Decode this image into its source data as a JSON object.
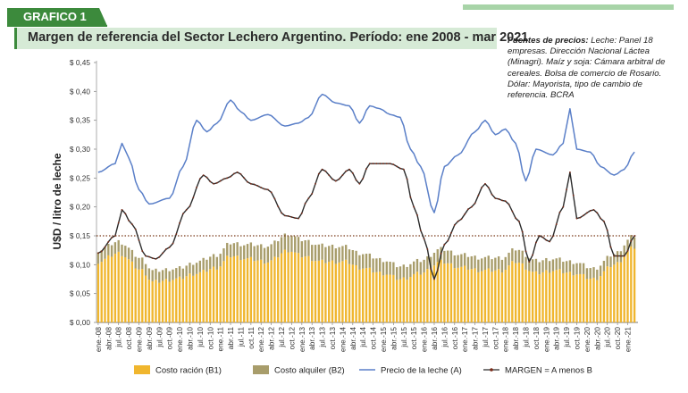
{
  "header": {
    "tag": "GRAFICO 1",
    "title": "Margen de referencia del Sector Lechero Argentino. Período: ene 2008 - mar 2021"
  },
  "sources": {
    "label": "Fuentes de precios:",
    "text": " Leche: Panel 18 empresas. Dirección Nacional Láctea (Minagri). Maíz y soja: Cámara arbitral de cereales. Bolsa de comercio de Rosario. Dólar: Mayorista, tipo de cambio de referencia. BCRA"
  },
  "colors": {
    "costo_racion": "#f0b62e",
    "costo_alquiler": "#a89d6b",
    "precio_leche": "#5a7fc8",
    "margen": "#2b2b2b",
    "reference_line": "#7a3a1a"
  },
  "chart_data": {
    "type": "bar",
    "ylabel": "U$D / litro de leche",
    "ylim": [
      0,
      0.45
    ],
    "yticks": [
      "$ 0,00",
      "$ 0,05",
      "$ 0,10",
      "$ 0,15",
      "$ 0,20",
      "$ 0,25",
      "$ 0,30",
      "$ 0,35",
      "$ 0,40",
      "$ 0,45"
    ],
    "x_start": "2008-01",
    "x_end": "2021-03",
    "xticks": [
      "ene.-08",
      "abr.-08",
      "jul.-08",
      "oct.-08",
      "ene.-09",
      "abr.-09",
      "jul.-09",
      "oct.-09",
      "ene.-10",
      "abr.-10",
      "jul.-10",
      "oct.-10",
      "ene.-11",
      "abr.-11",
      "jul.-11",
      "oct.-11",
      "ene.-12",
      "abr.-12",
      "jul.-12",
      "oct.-12",
      "ene.-13",
      "abr.-13",
      "jul.-13",
      "oct.-13",
      "ene.-14",
      "abr.-14",
      "jul.-14",
      "oct.-14",
      "ene.-15",
      "abr.-15",
      "jul.-15",
      "oct.-15",
      "ene.-16",
      "abr.-16",
      "jul.-16",
      "oct.-16",
      "ene.-17",
      "abr.-17",
      "jul.-17",
      "oct.-17",
      "ene.-18",
      "abr.-18",
      "jul.-18",
      "oct.-18",
      "ene.-19",
      "abr.-19",
      "jul.-19",
      "oct.-19",
      "ene.-20",
      "abr.-20",
      "jul.-20",
      "oct.-20",
      "ene.-21"
    ],
    "reference_line_y": 0.15,
    "legend_position": "bottom",
    "series": [
      {
        "name": "Costo ración (B1)",
        "kind": "stacked-bar",
        "knots": [
          [
            "2008-01",
            0.105
          ],
          [
            "2008-07",
            0.12
          ],
          [
            "2009-02",
            0.09
          ],
          [
            "2009-05",
            0.07
          ],
          [
            "2009-12",
            0.075
          ],
          [
            "2010-06",
            0.085
          ],
          [
            "2010-12",
            0.095
          ],
          [
            "2011-04",
            0.115
          ],
          [
            "2011-09",
            0.11
          ],
          [
            "2012-03",
            0.105
          ],
          [
            "2012-09",
            0.125
          ],
          [
            "2013-01",
            0.115
          ],
          [
            "2013-07",
            0.105
          ],
          [
            "2014-02",
            0.105
          ],
          [
            "2014-06",
            0.095
          ],
          [
            "2015-01",
            0.085
          ],
          [
            "2015-06",
            0.075
          ],
          [
            "2015-12",
            0.085
          ],
          [
            "2016-06",
            0.105
          ],
          [
            "2016-12",
            0.095
          ],
          [
            "2017-06",
            0.09
          ],
          [
            "2017-12",
            0.09
          ],
          [
            "2018-04",
            0.105
          ],
          [
            "2018-10",
            0.085
          ],
          [
            "2019-03",
            0.09
          ],
          [
            "2019-09",
            0.085
          ],
          [
            "2020-03",
            0.075
          ],
          [
            "2020-09",
            0.1
          ],
          [
            "2021-03",
            0.13
          ]
        ]
      },
      {
        "name": "Costo alquiler (B2)",
        "kind": "stacked-bar",
        "knots": [
          [
            "2008-01",
            0.02
          ],
          [
            "2009-01",
            0.02
          ],
          [
            "2010-01",
            0.018
          ],
          [
            "2011-01",
            0.022
          ],
          [
            "2012-06",
            0.028
          ],
          [
            "2013-06",
            0.028
          ],
          [
            "2014-06",
            0.025
          ],
          [
            "2015-06",
            0.022
          ],
          [
            "2016-06",
            0.022
          ],
          [
            "2017-06",
            0.022
          ],
          [
            "2018-06",
            0.022
          ],
          [
            "2019-06",
            0.02
          ],
          [
            "2020-06",
            0.018
          ],
          [
            "2021-03",
            0.02
          ]
        ]
      },
      {
        "name": "Precio de la leche (A)",
        "kind": "line",
        "knots": [
          [
            "2008-01",
            0.26
          ],
          [
            "2008-06",
            0.275
          ],
          [
            "2008-08",
            0.31
          ],
          [
            "2008-10",
            0.285
          ],
          [
            "2009-01",
            0.23
          ],
          [
            "2009-04",
            0.205
          ],
          [
            "2009-10",
            0.215
          ],
          [
            "2010-02",
            0.27
          ],
          [
            "2010-06",
            0.35
          ],
          [
            "2010-09",
            0.33
          ],
          [
            "2010-12",
            0.345
          ],
          [
            "2011-04",
            0.385
          ],
          [
            "2011-07",
            0.365
          ],
          [
            "2011-10",
            0.35
          ],
          [
            "2012-03",
            0.36
          ],
          [
            "2012-08",
            0.34
          ],
          [
            "2012-12",
            0.345
          ],
          [
            "2013-03",
            0.355
          ],
          [
            "2013-07",
            0.395
          ],
          [
            "2013-11",
            0.38
          ],
          [
            "2014-03",
            0.375
          ],
          [
            "2014-06",
            0.345
          ],
          [
            "2014-09",
            0.375
          ],
          [
            "2014-12",
            0.37
          ],
          [
            "2015-03",
            0.36
          ],
          [
            "2015-06",
            0.355
          ],
          [
            "2015-09",
            0.3
          ],
          [
            "2015-12",
            0.27
          ],
          [
            "2016-04",
            0.19
          ],
          [
            "2016-07",
            0.27
          ],
          [
            "2016-11",
            0.29
          ],
          [
            "2017-04",
            0.33
          ],
          [
            "2017-07",
            0.35
          ],
          [
            "2017-10",
            0.325
          ],
          [
            "2018-01",
            0.335
          ],
          [
            "2018-04",
            0.31
          ],
          [
            "2018-07",
            0.245
          ],
          [
            "2018-10",
            0.3
          ],
          [
            "2019-03",
            0.29
          ],
          [
            "2019-06",
            0.31
          ],
          [
            "2019-08",
            0.37
          ],
          [
            "2019-10",
            0.3
          ],
          [
            "2020-02",
            0.295
          ],
          [
            "2020-05",
            0.27
          ],
          [
            "2020-09",
            0.255
          ],
          [
            "2020-12",
            0.265
          ],
          [
            "2021-03",
            0.295
          ]
        ]
      },
      {
        "name": "MARGEN = A menos B",
        "kind": "line",
        "knots": [
          [
            "2008-01",
            0.12
          ],
          [
            "2008-06",
            0.15
          ],
          [
            "2008-08",
            0.195
          ],
          [
            "2008-11",
            0.17
          ],
          [
            "2009-03",
            0.115
          ],
          [
            "2009-06",
            0.11
          ],
          [
            "2009-10",
            0.13
          ],
          [
            "2010-03",
            0.195
          ],
          [
            "2010-08",
            0.255
          ],
          [
            "2010-11",
            0.24
          ],
          [
            "2011-03",
            0.25
          ],
          [
            "2011-06",
            0.26
          ],
          [
            "2011-10",
            0.24
          ],
          [
            "2012-03",
            0.23
          ],
          [
            "2012-08",
            0.185
          ],
          [
            "2012-12",
            0.18
          ],
          [
            "2013-03",
            0.215
          ],
          [
            "2013-07",
            0.265
          ],
          [
            "2013-11",
            0.245
          ],
          [
            "2014-03",
            0.265
          ],
          [
            "2014-06",
            0.24
          ],
          [
            "2014-09",
            0.275
          ],
          [
            "2014-12",
            0.275
          ],
          [
            "2015-03",
            0.275
          ],
          [
            "2015-07",
            0.265
          ],
          [
            "2015-10",
            0.2
          ],
          [
            "2016-01",
            0.145
          ],
          [
            "2016-04",
            0.075
          ],
          [
            "2016-07",
            0.135
          ],
          [
            "2016-11",
            0.175
          ],
          [
            "2017-03",
            0.2
          ],
          [
            "2017-07",
            0.24
          ],
          [
            "2017-10",
            0.215
          ],
          [
            "2018-01",
            0.21
          ],
          [
            "2018-05",
            0.175
          ],
          [
            "2018-08",
            0.105
          ],
          [
            "2018-11",
            0.15
          ],
          [
            "2019-02",
            0.14
          ],
          [
            "2019-06",
            0.2
          ],
          [
            "2019-08",
            0.26
          ],
          [
            "2019-10",
            0.18
          ],
          [
            "2020-03",
            0.195
          ],
          [
            "2020-06",
            0.175
          ],
          [
            "2020-09",
            0.115
          ],
          [
            "2020-12",
            0.115
          ],
          [
            "2021-03",
            0.15
          ]
        ]
      }
    ]
  }
}
